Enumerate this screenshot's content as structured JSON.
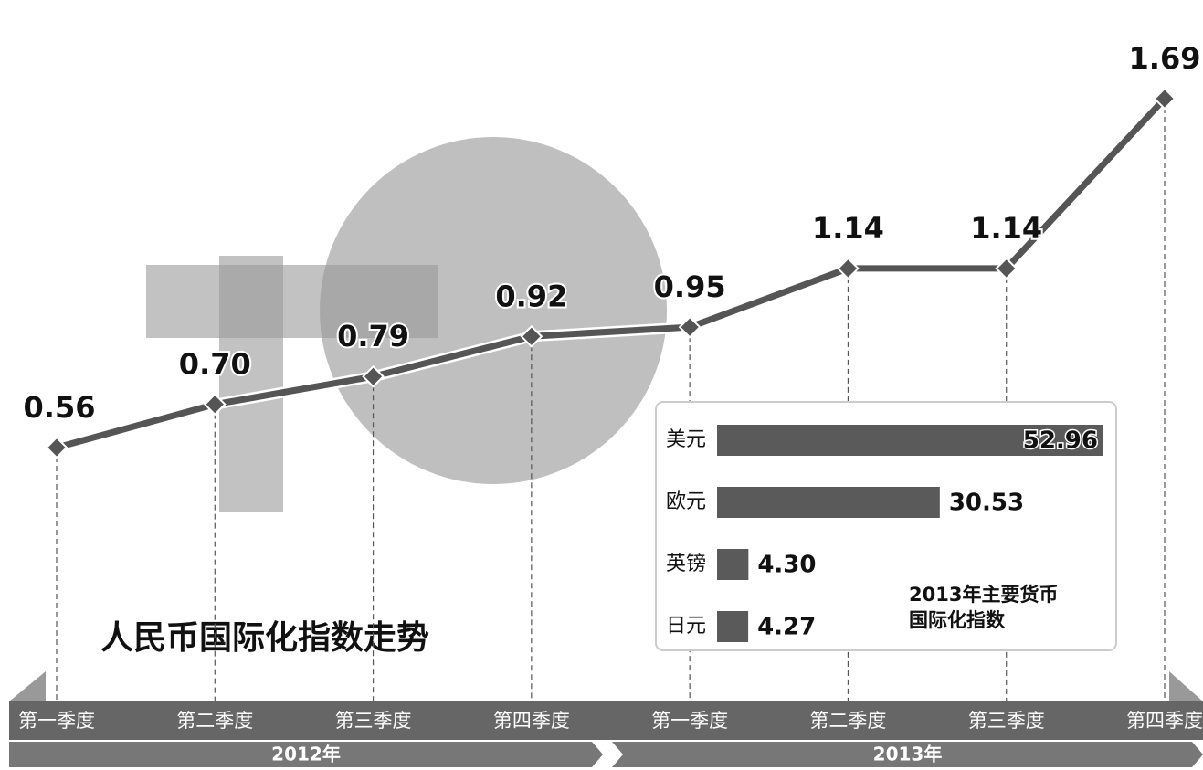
{
  "chart_data": [
    {
      "type": "line",
      "title": "人民币国际化指数走势",
      "categories": [
        "第一季度",
        "第二季度",
        "第三季度",
        "第四季度",
        "第一季度",
        "第二季度",
        "第三季度",
        "第四季度"
      ],
      "groups": [
        "2012年",
        "2013年"
      ],
      "values": [
        0.56,
        0.7,
        0.79,
        0.92,
        0.95,
        1.14,
        1.14,
        1.69
      ],
      "value_labels": [
        "0.56",
        "0.70",
        "0.79",
        "0.92",
        "0.95",
        "1.14",
        "1.14",
        "1.69"
      ],
      "color": "#555555"
    },
    {
      "type": "barh",
      "title": [
        "2013年主要货币",
        "国际化指数"
      ],
      "categories": [
        "美元",
        "欧元",
        "英镑",
        "日元"
      ],
      "values": [
        52.96,
        30.53,
        4.3,
        4.27
      ],
      "value_labels": [
        "52.96",
        "30.53",
        "4.30",
        "4.27"
      ],
      "color": "#5a5a5a"
    }
  ]
}
